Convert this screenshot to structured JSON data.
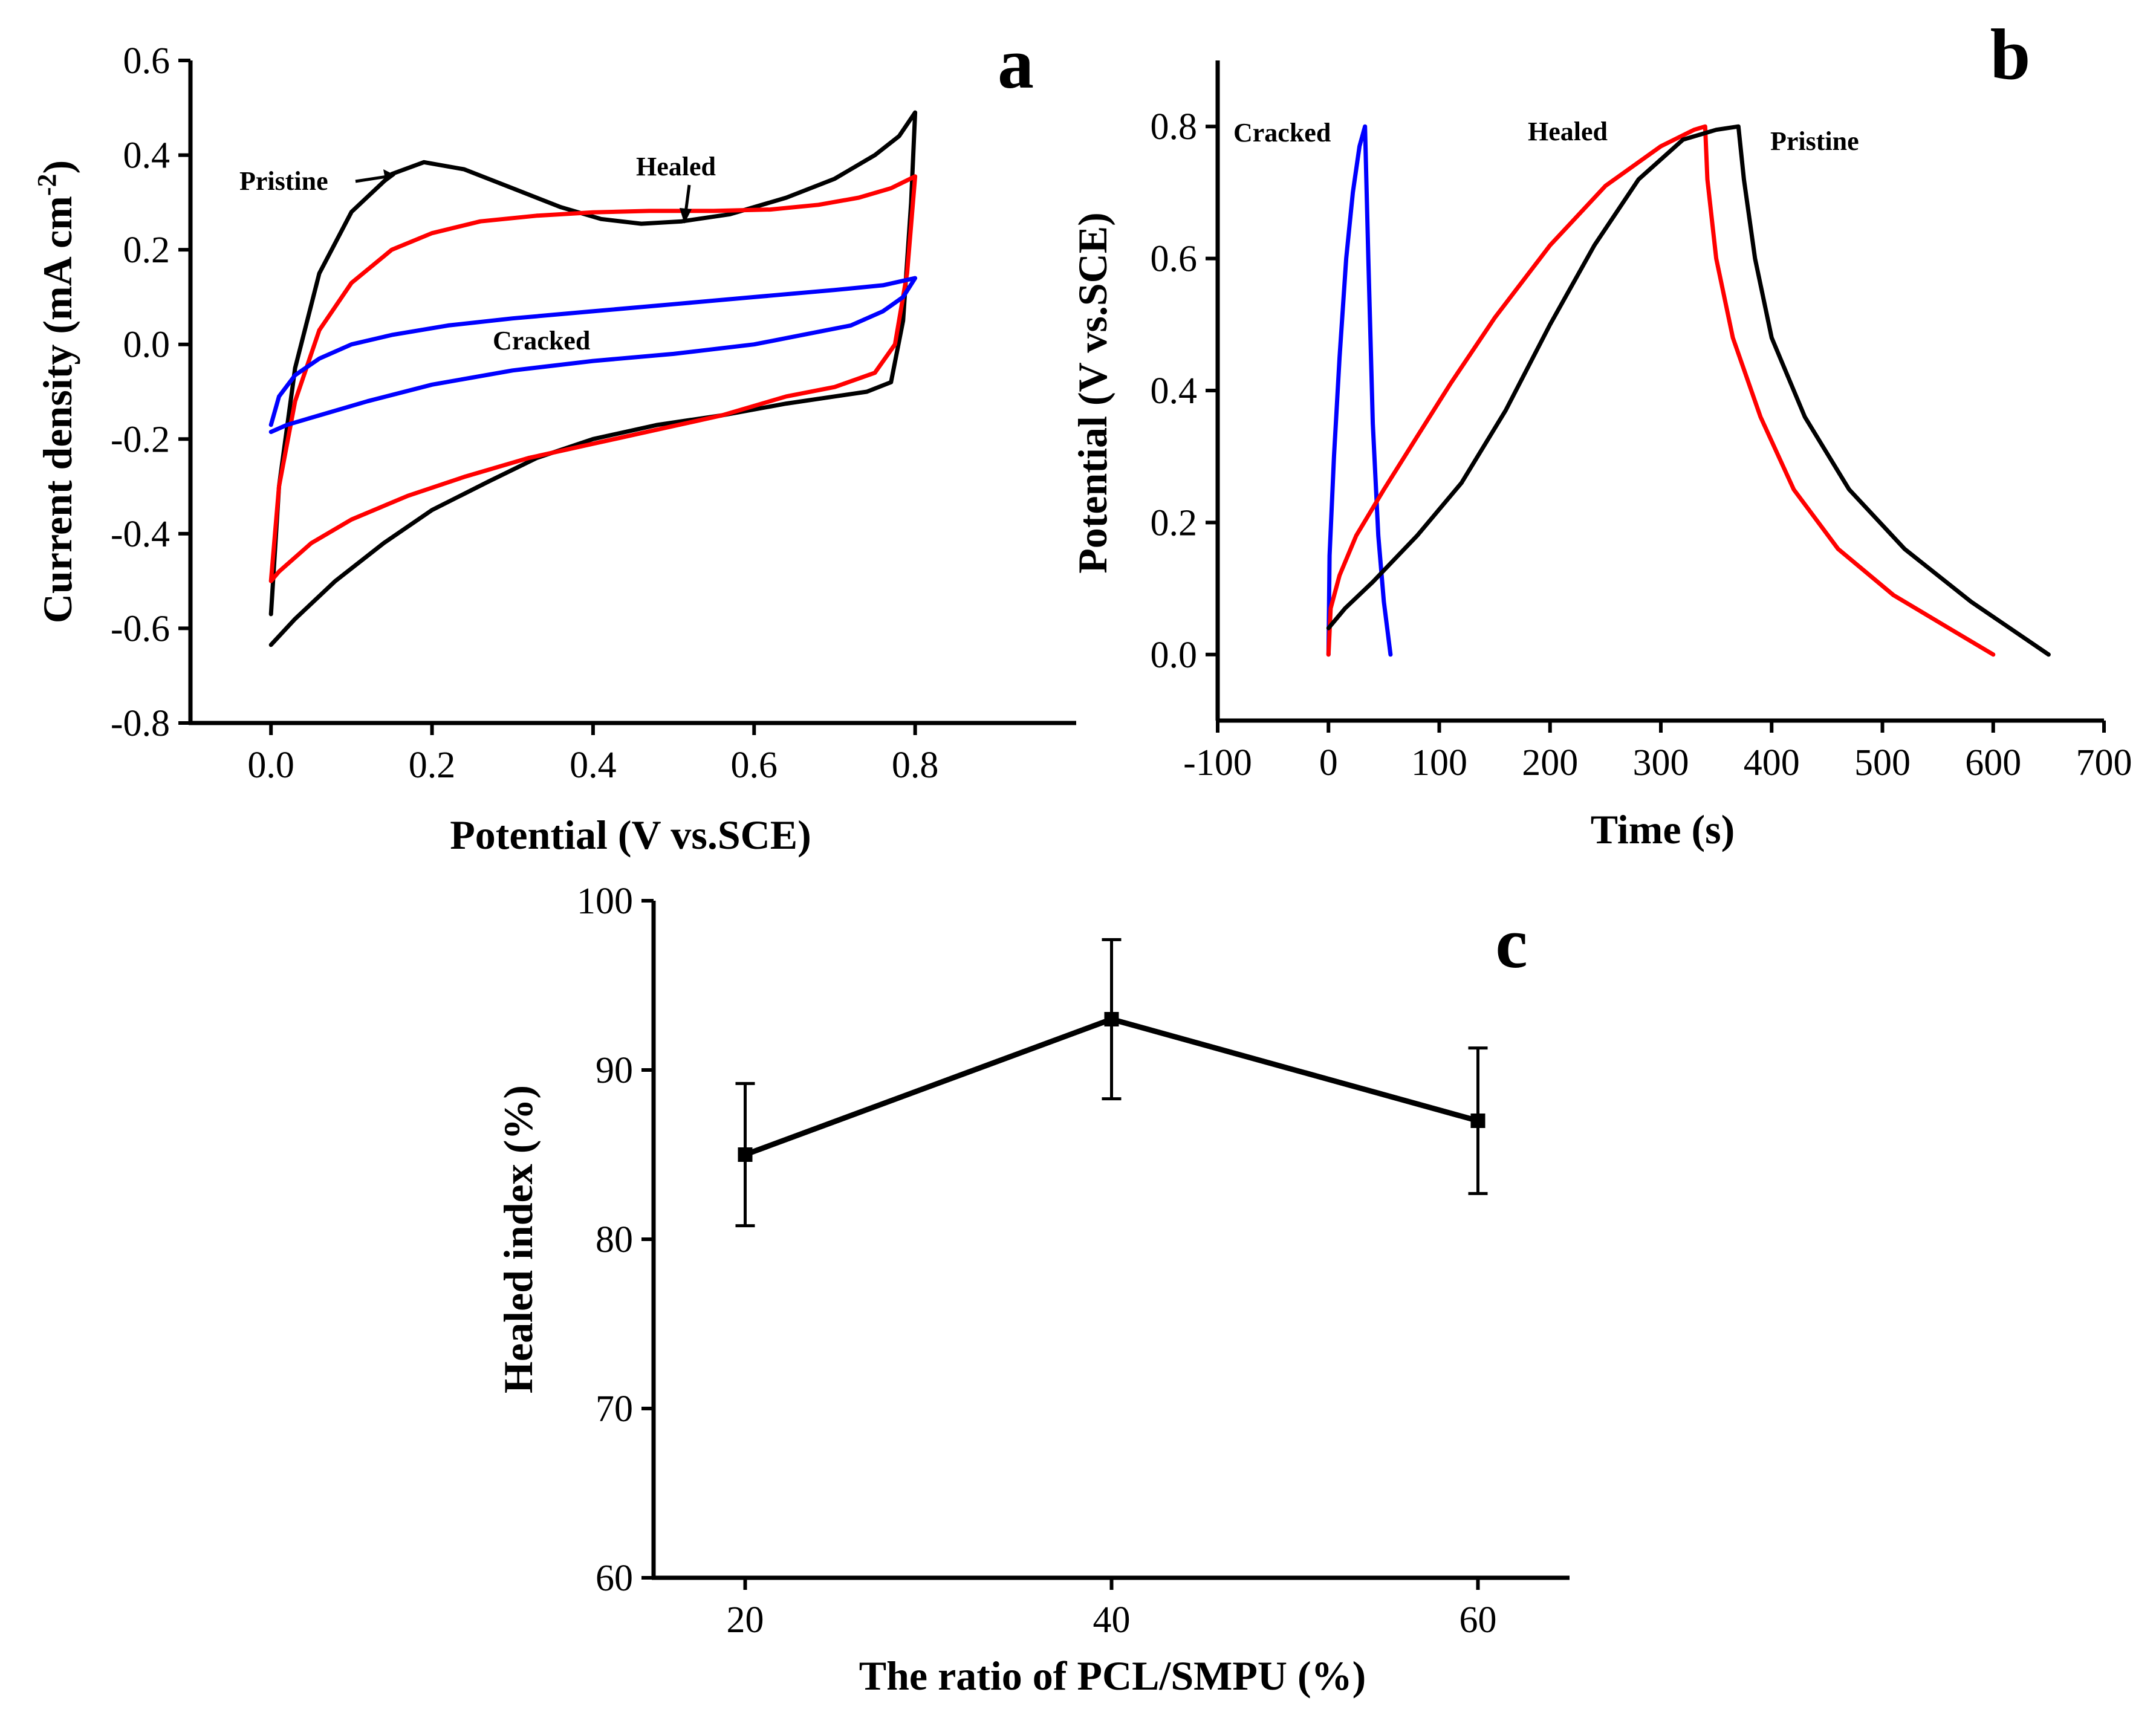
{
  "chart_data": [
    {
      "panel": "a",
      "type": "line",
      "xlabel": "Potential (V vs.SCE)",
      "ylabel": "Current density (mA cm",
      "ylabel_sup": "-2",
      "ylabel_close": ")",
      "xlim": [
        -0.1,
        1.0
      ],
      "ylim": [
        -0.8,
        0.6
      ],
      "xticks": [
        0.0,
        0.2,
        0.4,
        0.6,
        0.8
      ],
      "xtick_labels": [
        "0.0",
        "0.2",
        "0.4",
        "0.6",
        "0.8"
      ],
      "yticks": [
        -0.8,
        -0.6,
        -0.4,
        -0.2,
        0.0,
        0.2,
        0.4,
        0.6
      ],
      "ytick_labels": [
        "-0.8",
        "-0.6",
        "-0.4",
        "-0.2",
        "0.0",
        "0.2",
        "0.4",
        "0.6"
      ],
      "series": [
        {
          "name": "Pristine",
          "color": "#000000",
          "points": [
            [
              0.0,
              -0.57
            ],
            [
              0.01,
              -0.3
            ],
            [
              0.03,
              -0.05
            ],
            [
              0.06,
              0.15
            ],
            [
              0.1,
              0.28
            ],
            [
              0.15,
              0.36
            ],
            [
              0.19,
              0.385
            ],
            [
              0.24,
              0.37
            ],
            [
              0.3,
              0.33
            ],
            [
              0.36,
              0.29
            ],
            [
              0.41,
              0.265
            ],
            [
              0.46,
              0.255
            ],
            [
              0.51,
              0.26
            ],
            [
              0.57,
              0.275
            ],
            [
              0.64,
              0.31
            ],
            [
              0.7,
              0.35
            ],
            [
              0.75,
              0.4
            ],
            [
              0.78,
              0.44
            ],
            [
              0.8,
              0.49
            ],
            [
              0.8,
              0.49
            ],
            [
              0.795,
              0.3
            ],
            [
              0.785,
              0.05
            ],
            [
              0.77,
              -0.08
            ],
            [
              0.74,
              -0.1
            ],
            [
              0.7,
              -0.11
            ],
            [
              0.64,
              -0.125
            ],
            [
              0.56,
              -0.15
            ],
            [
              0.48,
              -0.17
            ],
            [
              0.4,
              -0.2
            ],
            [
              0.33,
              -0.24
            ],
            [
              0.27,
              -0.29
            ],
            [
              0.2,
              -0.35
            ],
            [
              0.14,
              -0.42
            ],
            [
              0.08,
              -0.5
            ],
            [
              0.03,
              -0.58
            ],
            [
              0.0,
              -0.635
            ]
          ]
        },
        {
          "name": "Healed",
          "color": "#ff0000",
          "points": [
            [
              0.0,
              -0.5
            ],
            [
              0.01,
              -0.3
            ],
            [
              0.03,
              -0.12
            ],
            [
              0.06,
              0.03
            ],
            [
              0.1,
              0.13
            ],
            [
              0.15,
              0.2
            ],
            [
              0.2,
              0.235
            ],
            [
              0.26,
              0.26
            ],
            [
              0.33,
              0.272
            ],
            [
              0.4,
              0.279
            ],
            [
              0.47,
              0.282
            ],
            [
              0.55,
              0.282
            ],
            [
              0.62,
              0.285
            ],
            [
              0.68,
              0.295
            ],
            [
              0.73,
              0.31
            ],
            [
              0.77,
              0.33
            ],
            [
              0.8,
              0.355
            ],
            [
              0.8,
              0.355
            ],
            [
              0.79,
              0.15
            ],
            [
              0.775,
              0.0
            ],
            [
              0.75,
              -0.06
            ],
            [
              0.7,
              -0.09
            ],
            [
              0.64,
              -0.11
            ],
            [
              0.56,
              -0.15
            ],
            [
              0.48,
              -0.18
            ],
            [
              0.4,
              -0.21
            ],
            [
              0.32,
              -0.24
            ],
            [
              0.24,
              -0.28
            ],
            [
              0.17,
              -0.32
            ],
            [
              0.1,
              -0.37
            ],
            [
              0.05,
              -0.42
            ],
            [
              0.01,
              -0.48
            ],
            [
              0.0,
              -0.5
            ]
          ]
        },
        {
          "name": "Cracked",
          "color": "#0000ff",
          "points": [
            [
              0.0,
              -0.17
            ],
            [
              0.01,
              -0.11
            ],
            [
              0.03,
              -0.065
            ],
            [
              0.06,
              -0.03
            ],
            [
              0.1,
              0.0
            ],
            [
              0.15,
              0.02
            ],
            [
              0.22,
              0.04
            ],
            [
              0.3,
              0.055
            ],
            [
              0.4,
              0.07
            ],
            [
              0.5,
              0.085
            ],
            [
              0.6,
              0.1
            ],
            [
              0.7,
              0.115
            ],
            [
              0.76,
              0.125
            ],
            [
              0.8,
              0.14
            ],
            [
              0.8,
              0.14
            ],
            [
              0.785,
              0.1
            ],
            [
              0.76,
              0.07
            ],
            [
              0.72,
              0.04
            ],
            [
              0.66,
              0.02
            ],
            [
              0.6,
              0.0
            ],
            [
              0.5,
              -0.02
            ],
            [
              0.4,
              -0.035
            ],
            [
              0.3,
              -0.055
            ],
            [
              0.2,
              -0.085
            ],
            [
              0.12,
              -0.12
            ],
            [
              0.06,
              -0.15
            ],
            [
              0.02,
              -0.17
            ],
            [
              0.0,
              -0.185
            ]
          ]
        }
      ],
      "annotations": [
        {
          "text": "Pristine",
          "arrow": true
        },
        {
          "text": "Healed",
          "arrow": true
        },
        {
          "text": "Cracked"
        }
      ]
    },
    {
      "panel": "b",
      "type": "line",
      "xlabel": "Time (s)",
      "ylabel": "Potential (V vs.SCE)",
      "xlim": [
        -100,
        700
      ],
      "ylim": [
        -0.1,
        0.9
      ],
      "xticks": [
        -100,
        0,
        100,
        200,
        300,
        400,
        500,
        600,
        700
      ],
      "xtick_labels": [
        "-100",
        "0",
        "100",
        "200",
        "300",
        "400",
        "500",
        "600",
        "700"
      ],
      "yticks": [
        0.0,
        0.2,
        0.4,
        0.6,
        0.8
      ],
      "ytick_labels": [
        "0.0",
        "0.2",
        "0.4",
        "0.6",
        "0.8"
      ],
      "series": [
        {
          "name": "Cracked",
          "color": "#0000ff",
          "points": [
            [
              0,
              0.0
            ],
            [
              1,
              0.15
            ],
            [
              5,
              0.3
            ],
            [
              10,
              0.45
            ],
            [
              16,
              0.6
            ],
            [
              22,
              0.7
            ],
            [
              28,
              0.77
            ],
            [
              33,
              0.8
            ],
            [
              36,
              0.6
            ],
            [
              40,
              0.35
            ],
            [
              45,
              0.18
            ],
            [
              50,
              0.08
            ],
            [
              56,
              0.0
            ]
          ]
        },
        {
          "name": "Healed",
          "color": "#ff0000",
          "points": [
            [
              0,
              0.0
            ],
            [
              2,
              0.07
            ],
            [
              10,
              0.12
            ],
            [
              25,
              0.18
            ],
            [
              50,
              0.25
            ],
            [
              80,
              0.33
            ],
            [
              110,
              0.41
            ],
            [
              150,
              0.51
            ],
            [
              200,
              0.62
            ],
            [
              250,
              0.71
            ],
            [
              300,
              0.77
            ],
            [
              330,
              0.795
            ],
            [
              340,
              0.8
            ],
            [
              342,
              0.72
            ],
            [
              350,
              0.6
            ],
            [
              365,
              0.48
            ],
            [
              390,
              0.36
            ],
            [
              420,
              0.25
            ],
            [
              460,
              0.16
            ],
            [
              510,
              0.09
            ],
            [
              560,
              0.04
            ],
            [
              600,
              0.0
            ]
          ]
        },
        {
          "name": "Pristine",
          "color": "#000000",
          "points": [
            [
              0,
              0.04
            ],
            [
              15,
              0.07
            ],
            [
              40,
              0.11
            ],
            [
              80,
              0.18
            ],
            [
              120,
              0.26
            ],
            [
              160,
              0.37
            ],
            [
              200,
              0.5
            ],
            [
              240,
              0.62
            ],
            [
              280,
              0.72
            ],
            [
              320,
              0.78
            ],
            [
              350,
              0.795
            ],
            [
              370,
              0.8
            ],
            [
              375,
              0.72
            ],
            [
              385,
              0.6
            ],
            [
              400,
              0.48
            ],
            [
              430,
              0.36
            ],
            [
              470,
              0.25
            ],
            [
              520,
              0.16
            ],
            [
              580,
              0.08
            ],
            [
              650,
              0.0
            ]
          ]
        }
      ],
      "annotations": [
        {
          "text": "Cracked"
        },
        {
          "text": "Healed"
        },
        {
          "text": "Pristine"
        }
      ]
    },
    {
      "panel": "c",
      "type": "line",
      "xlabel": "The ratio of PCL/SMPU (%)",
      "ylabel": "Healed index (%)",
      "xlim": [
        15,
        65
      ],
      "ylim": [
        60,
        100
      ],
      "xticks": [
        20,
        40,
        60
      ],
      "xtick_labels": [
        "20",
        "40",
        "60"
      ],
      "yticks": [
        60,
        70,
        80,
        90,
        100
      ],
      "ytick_labels": [
        "60",
        "70",
        "80",
        "90",
        "100"
      ],
      "x": [
        20,
        40,
        60
      ],
      "y": [
        85.0,
        93.0,
        87.0
      ],
      "error": [
        4.2,
        4.7,
        4.3
      ],
      "color": "#000000"
    }
  ]
}
